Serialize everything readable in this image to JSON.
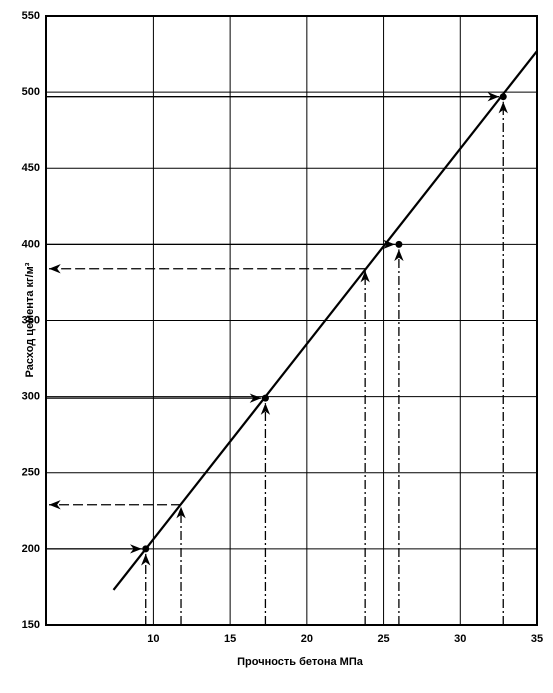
{
  "chart_data": {
    "type": "line",
    "x_label": "Прочность бетона МПа",
    "y_label": "Расход цемента кг/м³",
    "xlim": [
      3,
      35
    ],
    "ylim": [
      150,
      550
    ],
    "xticks": [
      10,
      15,
      20,
      25,
      30,
      35
    ],
    "yticks": [
      150,
      200,
      250,
      300,
      350,
      400,
      450,
      500,
      550
    ],
    "grid": true,
    "series": [
      {
        "color": "#000000",
        "x": [
          7.4,
          35
        ],
        "y": [
          173,
          527
        ]
      }
    ],
    "points": {
      "x": [
        9.5,
        17.3,
        26.0,
        32.8
      ],
      "y": [
        200,
        299,
        400,
        497
      ]
    },
    "readings": {
      "x": [
        11.8,
        23.8
      ],
      "y": [
        229,
        384
      ]
    }
  }
}
